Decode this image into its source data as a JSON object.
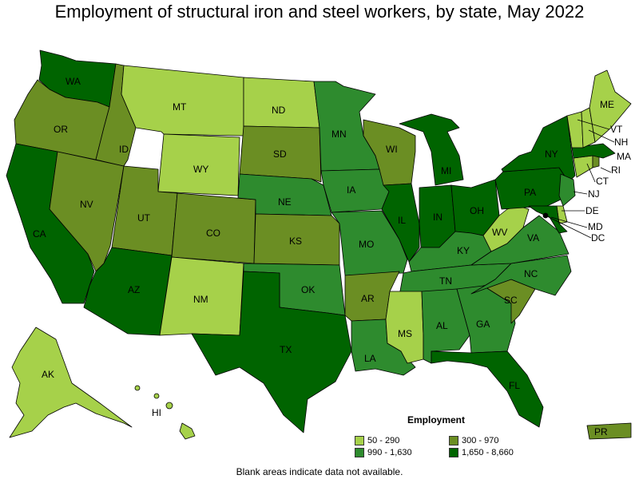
{
  "title": "Employment of structural iron and steel workers, by state, May 2022",
  "legend": {
    "title": "Employment",
    "items": [
      {
        "label": "50 - 290",
        "color": "#a6d14a"
      },
      {
        "label": "300 - 970",
        "color": "#6b8e23"
      },
      {
        "label": "990 - 1,630",
        "color": "#2e8b2e"
      },
      {
        "label": "1,650 - 8,660",
        "color": "#006400"
      }
    ]
  },
  "footnote": "Blank areas indicate data not available.",
  "states": {
    "WA": {
      "label": "WA",
      "color": "#006400"
    },
    "OR": {
      "label": "OR",
      "color": "#6b8e23"
    },
    "CA": {
      "label": "CA",
      "color": "#006400"
    },
    "NV": {
      "label": "NV",
      "color": "#6b8e23"
    },
    "ID": {
      "label": "ID",
      "color": "#6b8e23"
    },
    "MT": {
      "label": "MT",
      "color": "#a6d14a"
    },
    "WY": {
      "label": "WY",
      "color": "#a6d14a"
    },
    "UT": {
      "label": "UT",
      "color": "#6b8e23"
    },
    "AZ": {
      "label": "AZ",
      "color": "#006400"
    },
    "CO": {
      "label": "CO",
      "color": "#6b8e23"
    },
    "NM": {
      "label": "NM",
      "color": "#a6d14a"
    },
    "ND": {
      "label": "ND",
      "color": "#a6d14a"
    },
    "SD": {
      "label": "SD",
      "color": "#6b8e23"
    },
    "NE": {
      "label": "NE",
      "color": "#2e8b2e"
    },
    "KS": {
      "label": "KS",
      "color": "#6b8e23"
    },
    "OK": {
      "label": "OK",
      "color": "#2e8b2e"
    },
    "TX": {
      "label": "TX",
      "color": "#006400"
    },
    "MN": {
      "label": "MN",
      "color": "#2e8b2e"
    },
    "IA": {
      "label": "IA",
      "color": "#2e8b2e"
    },
    "MO": {
      "label": "MO",
      "color": "#2e8b2e"
    },
    "AR": {
      "label": "AR",
      "color": "#6b8e23"
    },
    "LA": {
      "label": "LA",
      "color": "#2e8b2e"
    },
    "WI": {
      "label": "WI",
      "color": "#6b8e23"
    },
    "IL": {
      "label": "IL",
      "color": "#006400"
    },
    "MI": {
      "label": "MI",
      "color": "#006400"
    },
    "IN": {
      "label": "IN",
      "color": "#006400"
    },
    "OH": {
      "label": "OH",
      "color": "#006400"
    },
    "KY": {
      "label": "KY",
      "color": "#2e8b2e"
    },
    "TN": {
      "label": "TN",
      "color": "#2e8b2e"
    },
    "MS": {
      "label": "MS",
      "color": "#a6d14a"
    },
    "AL": {
      "label": "AL",
      "color": "#2e8b2e"
    },
    "GA": {
      "label": "GA",
      "color": "#2e8b2e"
    },
    "FL": {
      "label": "FL",
      "color": "#006400"
    },
    "SC": {
      "label": "SC",
      "color": "#6b8e23"
    },
    "NC": {
      "label": "NC",
      "color": "#2e8b2e"
    },
    "VA": {
      "label": "VA",
      "color": "#2e8b2e"
    },
    "WV": {
      "label": "WV",
      "color": "#a6d14a"
    },
    "PA": {
      "label": "PA",
      "color": "#006400"
    },
    "NY": {
      "label": "NY",
      "color": "#006400"
    },
    "NJ": {
      "label": "NJ",
      "color": "#2e8b2e"
    },
    "DE": {
      "label": "DE",
      "color": "#a6d14a"
    },
    "MD": {
      "label": "MD",
      "color": "#006400"
    },
    "DC": {
      "label": "DC",
      "color": "#000000"
    },
    "CT": {
      "label": "CT",
      "color": "#a6d14a"
    },
    "RI": {
      "label": "RI",
      "color": "#6b8e23"
    },
    "MA": {
      "label": "MA",
      "color": "#006400"
    },
    "VT": {
      "label": "VT",
      "color": "#a6d14a"
    },
    "NH": {
      "label": "NH",
      "color": "#a6d14a"
    },
    "ME": {
      "label": "ME",
      "color": "#a6d14a"
    },
    "AK": {
      "label": "AK",
      "color": "#a6d14a"
    },
    "HI": {
      "label": "HI",
      "color": "#a6d14a"
    },
    "PR": {
      "label": "PR",
      "color": "#6b8e23"
    }
  }
}
